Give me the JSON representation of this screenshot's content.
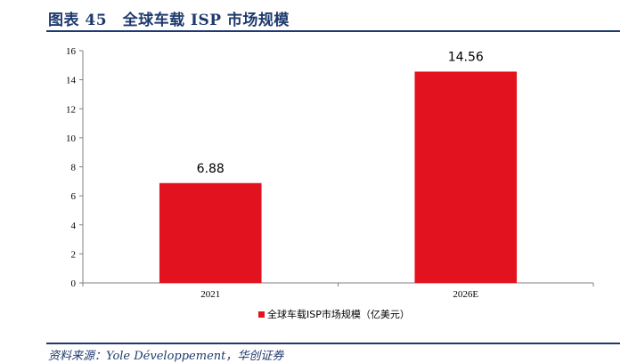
{
  "figure": {
    "title": "图表 45　全球车载 ISP 市场规模",
    "source": "资料来源：Yole Développement，华创证券"
  },
  "chart_data": {
    "type": "bar",
    "categories": [
      "2021",
      "2026E"
    ],
    "series": [
      {
        "name": "全球车载ISP市场规模（亿美元）",
        "values": [
          6.88,
          14.56
        ],
        "color": "#e2131e"
      }
    ],
    "data_labels": [
      "6.88",
      "14.56"
    ],
    "ylim": [
      0,
      16
    ],
    "yticks": [
      0,
      2,
      4,
      6,
      8,
      10,
      12,
      14,
      16
    ],
    "xlabel": "",
    "ylabel": "",
    "grid": false,
    "legend_position": "bottom"
  }
}
